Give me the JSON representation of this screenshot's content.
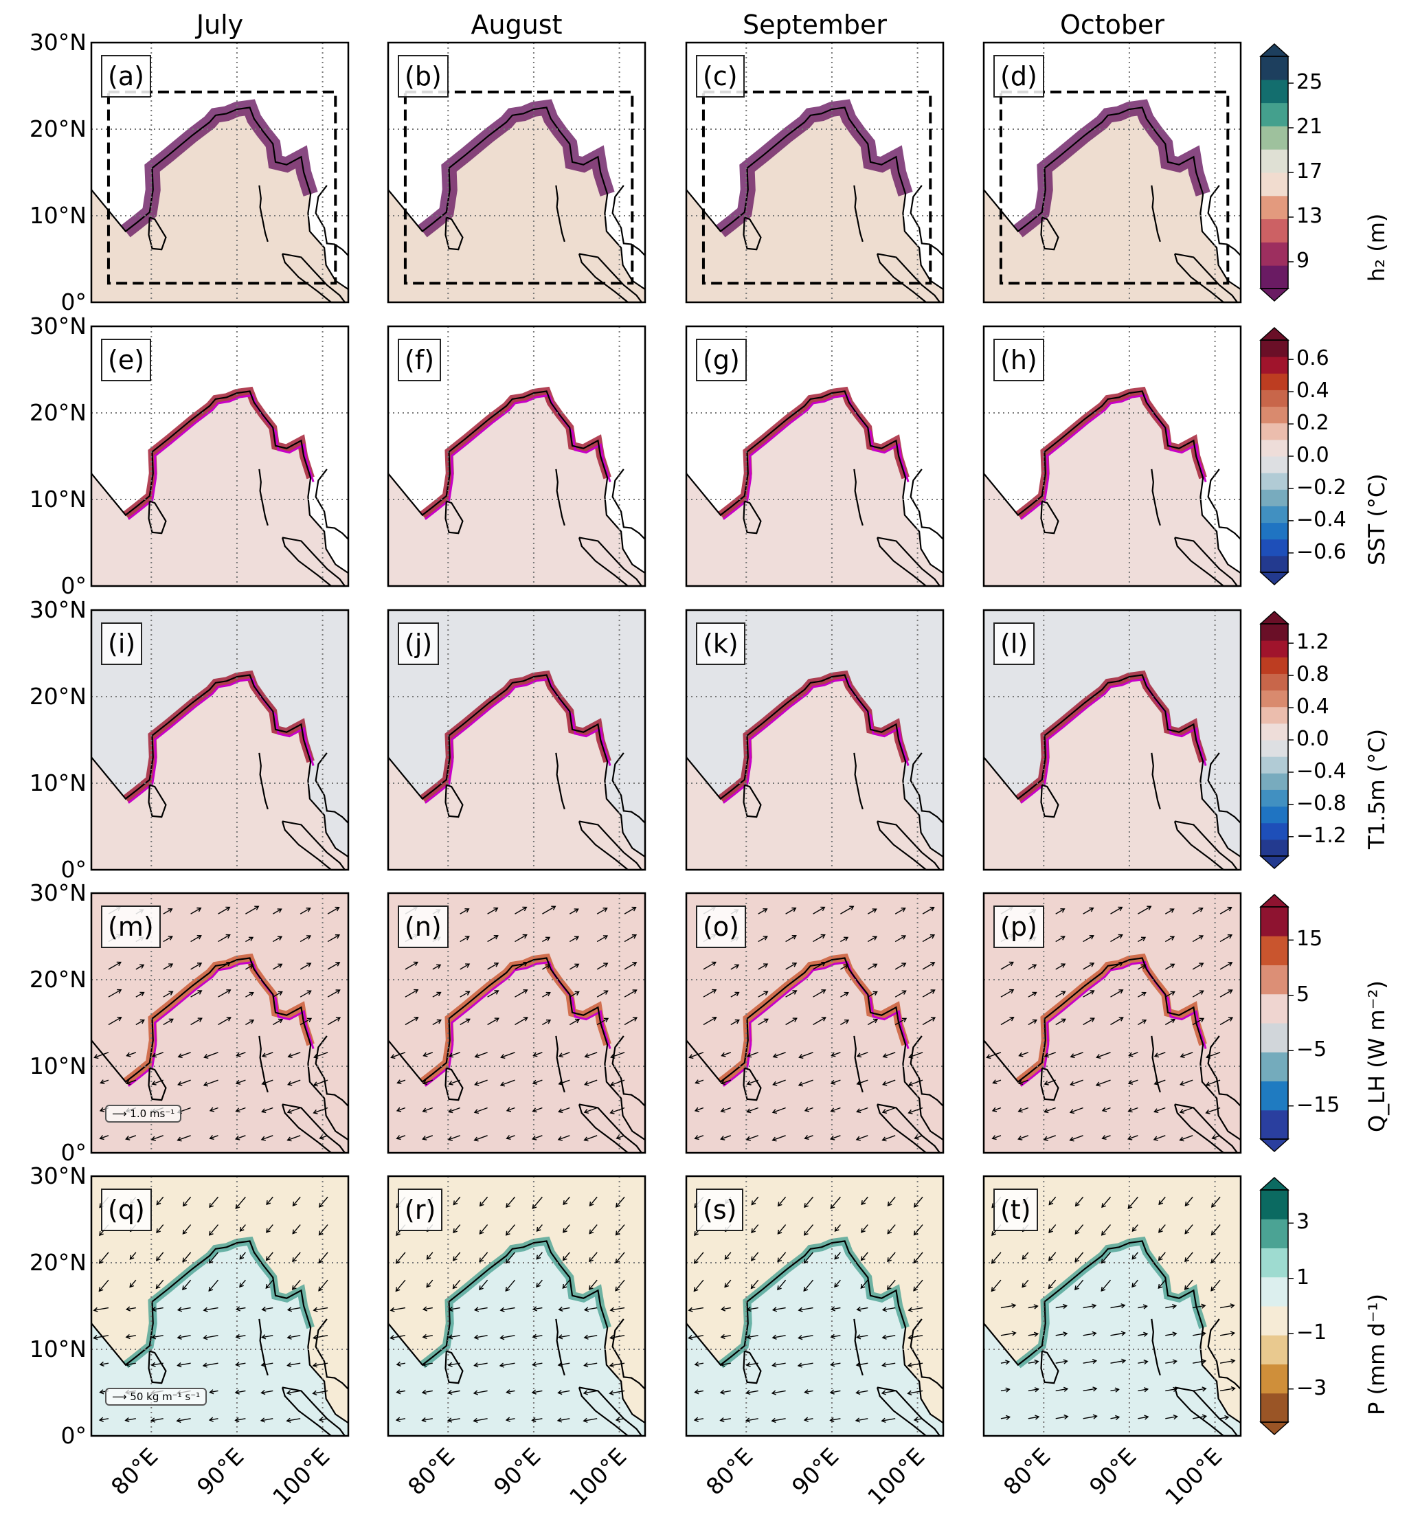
{
  "figure": {
    "columns": [
      "July",
      "August",
      "September",
      "October"
    ],
    "lat_ticks": [
      "30°N",
      "20°N",
      "10°N",
      "0°"
    ],
    "lon_ticks": [
      "80°E",
      "90°E",
      "100°E"
    ]
  },
  "chart_data": [
    {
      "type": "heatmap",
      "row": 1,
      "variable": "h2",
      "colorbar_label": "h₂ (m)",
      "colorbar_ticks": [
        "25",
        "21",
        "17",
        "13",
        "9"
      ],
      "colorbar_levels": [
        7,
        9,
        11,
        13,
        15,
        17,
        19,
        21,
        23,
        25,
        27
      ],
      "colors": [
        "#6a1b63",
        "#9d2f5f",
        "#cc6164",
        "#e39a7e",
        "#f1dccf",
        "#dfe0d4",
        "#9ec19d",
        "#44a08d",
        "#136e6e",
        "#1d3f5e"
      ],
      "extend": "both",
      "panels": [
        {
          "label": "(a)",
          "month": "July"
        },
        {
          "label": "(b)",
          "month": "August"
        },
        {
          "label": "(c)",
          "month": "September"
        },
        {
          "label": "(d)",
          "month": "October"
        }
      ],
      "xlim": [
        73,
        103
      ],
      "ylim": [
        0,
        30
      ],
      "annotation": "dashed box ~75–101°E, 2–24°N"
    },
    {
      "type": "heatmap",
      "row": 2,
      "variable": "SST",
      "colorbar_label": "SST (°C)",
      "colorbar_ticks": [
        "0.6",
        "0.4",
        "0.2",
        "0.0",
        "−0.2",
        "−0.4",
        "−0.6"
      ],
      "colorbar_levels": [
        -0.7,
        -0.6,
        -0.5,
        -0.4,
        -0.3,
        -0.2,
        -0.1,
        0.0,
        0.1,
        0.2,
        0.3,
        0.4,
        0.5,
        0.6,
        0.7
      ],
      "colors": [
        "#233a8f",
        "#1e4fb9",
        "#1f74c2",
        "#4190c1",
        "#78abbe",
        "#b1cbd5",
        "#dddfe2",
        "#eeddd9",
        "#ebbdad",
        "#d98a6e",
        "#c8664a",
        "#bd3d21",
        "#a0142c",
        "#6a0f27"
      ],
      "extend": "both",
      "panels": [
        {
          "label": "(e)",
          "month": "July"
        },
        {
          "label": "(f)",
          "month": "August"
        },
        {
          "label": "(g)",
          "month": "September"
        },
        {
          "label": "(h)",
          "month": "October"
        }
      ],
      "xlim": [
        73,
        103
      ],
      "ylim": [
        0,
        30
      ]
    },
    {
      "type": "heatmap",
      "row": 3,
      "variable": "T1.5m",
      "colorbar_label": "T1.5m (°C)",
      "colorbar_ticks": [
        "1.2",
        "0.8",
        "0.4",
        "0.0",
        "−0.4",
        "−0.8",
        "−1.2"
      ],
      "colorbar_levels": [
        -1.4,
        -1.2,
        -1.0,
        -0.8,
        -0.6,
        -0.4,
        -0.2,
        0.0,
        0.2,
        0.4,
        0.6,
        0.8,
        1.0,
        1.2,
        1.4
      ],
      "colors": [
        "#233a8f",
        "#1e4fb9",
        "#1f74c2",
        "#4190c1",
        "#78abbe",
        "#b1cbd5",
        "#dddfe2",
        "#eeddd9",
        "#ebbdad",
        "#d98a6e",
        "#c8664a",
        "#bd3d21",
        "#a0142c",
        "#6a0f27"
      ],
      "extend": "both",
      "panels": [
        {
          "label": "(i)",
          "month": "July"
        },
        {
          "label": "(j)",
          "month": "August"
        },
        {
          "label": "(k)",
          "month": "September"
        },
        {
          "label": "(l)",
          "month": "October"
        }
      ],
      "xlim": [
        73,
        103
      ],
      "ylim": [
        0,
        30
      ]
    },
    {
      "type": "heatmap",
      "row": 4,
      "variable": "QLH",
      "colorbar_label": "Q_LH (W m⁻²)",
      "colorbar_ticks": [
        "15",
        "5",
        "−5",
        "−15"
      ],
      "colorbar_levels": [
        -20,
        -15,
        -10,
        -5,
        0,
        5,
        10,
        15,
        20
      ],
      "colors": [
        "#2a3f9f",
        "#1f7bc1",
        "#74abbc",
        "#d1d6da",
        "#efd5d0",
        "#dc8f76",
        "#c9552e",
        "#8e1330"
      ],
      "extend": "both",
      "vector_key": "1.0 ms⁻¹",
      "panels": [
        {
          "label": "(m)",
          "month": "July"
        },
        {
          "label": "(n)",
          "month": "August"
        },
        {
          "label": "(o)",
          "month": "September"
        },
        {
          "label": "(p)",
          "month": "October"
        }
      ],
      "xlim": [
        73,
        103
      ],
      "ylim": [
        0,
        30
      ]
    },
    {
      "type": "heatmap",
      "row": 5,
      "variable": "P",
      "colorbar_label": "P (mm d⁻¹)",
      "colorbar_ticks": [
        "3",
        "1",
        "−1",
        "−3"
      ],
      "colorbar_levels": [
        -4,
        -3,
        -2,
        -1,
        0,
        1,
        2,
        3,
        4
      ],
      "colors": [
        "#9a5526",
        "#cf8f3a",
        "#e9c98f",
        "#f6ebd6",
        "#dcefee",
        "#9edbd0",
        "#4ba394",
        "#0b6a61"
      ],
      "extend": "both",
      "vector_key": "50 kg m⁻¹ s⁻¹",
      "panels": [
        {
          "label": "(q)",
          "month": "July"
        },
        {
          "label": "(r)",
          "month": "August"
        },
        {
          "label": "(s)",
          "month": "September"
        },
        {
          "label": "(t)",
          "month": "October"
        }
      ],
      "xlim": [
        73,
        103
      ],
      "ylim": [
        0,
        30
      ]
    }
  ]
}
